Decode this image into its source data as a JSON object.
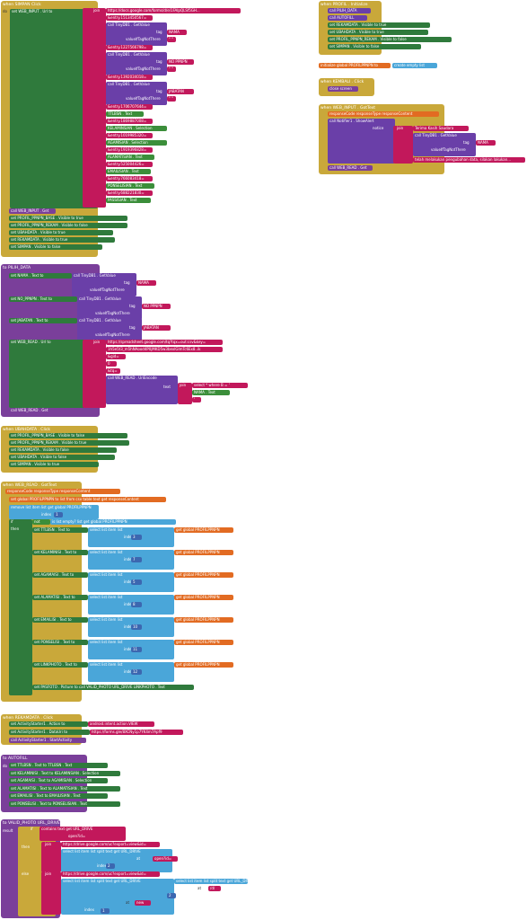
{
  "simpan": {
    "header": "when SIMPAN Click",
    "do": "do",
    "set_web_input": "set WEB_INPUT . Url to",
    "join": "join",
    "url1": "https://docs.google.com/forms/d/e/1FAIpQLSf5GH...",
    "entry1": "&entry.1513450567=",
    "call_tinydb": "call TinyDB1 . GetValue",
    "tag": "tag",
    "nama": "NAMA",
    "value_if": "valueIfTagNotThere",
    "empty": "\" \"",
    "entry2": "&entry.1227566798=",
    "no_ppnpn": "NO PPNPN",
    "entry3": "&entry.1392034018=",
    "jabatan": "JABATAN",
    "entry4": "&entry.1706707644=",
    "ttlbsn": "TTLBSN . Text",
    "entry5": "&entry.1869887008=",
    "kelaminsian": "KELAMINSIAN . Selection",
    "entry6": "&entry.1019985320=",
    "agamisian": "AGAMISIAN . Selection",
    "entry7": "&entry.1919396828=",
    "alamatisian": "ALAMATISIAN . Text",
    "entry8": "&entry.525004426=",
    "emailisian": "EMAILISIAN . Text",
    "entry9": "&entry.766083418=",
    "ponselisian": "PONSELISIAN . Text",
    "entry10": "&entry.688221830=",
    "passisian": "PASSISIAN . Text",
    "call_web_input": "call WEB_INPUT . Get",
    "set_profil_base": "set PROFIL_PPNPN_BASE . Visible to true",
    "set_profil_rekam": "set PROFIL_PPNPN_REKAM . Visible to false",
    "set_ubahdata": "set UBAHDATA . Visible to true",
    "set_rekamdata": "set REKAMDATA . Visible to true",
    "set_simpan": "set SIMPAN . Visible to false"
  },
  "profil": {
    "header": "when PROFIL . Initialize",
    "call_pilih": "call PILIH_DATA",
    "call_autofill": "call AUTOFILL",
    "set_rekamdata": "set REKAMDATA . Visible to true",
    "set_ubahdata": "set UBAHDATA . Visible to true",
    "set_profil_rekam": "set PROFIL_PPNPN_REKAM . Visible to false",
    "set_simpan": "set SIMPAN . Visible to false"
  },
  "init_global": "initialize global PROFILPPNPN to",
  "create_list": "create empty list",
  "kembali": {
    "header": "when KEMBALI . Click",
    "close": "close screen"
  },
  "web_input_got": {
    "header": "when WEB_INPUT . GotText",
    "params": "responseCode responseType responseContent",
    "call_notifier": "call Notifier1 . ShowAlert",
    "notice": "notice",
    "join": "join",
    "thanks": "Terima Kasih Saudara",
    "call_tinydb": "call TinyDB1 . GetValue",
    "tag": "tag",
    "nama": "NAMA",
    "value_if": "valueIfTagNotThere",
    "done": "telah melakukan pengubahan data, silakan lakukan...",
    "call_web_read": "call WEB_READ . Get"
  },
  "pilih_data": {
    "header": "to PILIH_DATA",
    "set_nama": "set NAMA . Text to",
    "set_no": "set NO_PPNPN . Text to",
    "set_jabatan": "set JABATAN . Text to",
    "set_web_read": "set WEB_READ . Url to",
    "url": "https://spreadsheet.google.com/tq?tqx=out:csv&key=",
    "key": "1h5e5t3_m5hNAood4P0jMKD5w3bexIGlmTc6Ex8..ik",
    "gid": "&gid=",
    "zero": "0",
    "tq": "&tq=",
    "call_uri": "call WEB_READ . UriEncode",
    "text_lbl": "text",
    "select": "select * where B = '",
    "nama_text": "NAMA . Text",
    "quote": "'",
    "call_get": "call WEB_READ . Get"
  },
  "ubahdata": {
    "header": "when UBAHDATA . Click",
    "l1": "set PROFIL_PPNPN_BASE . Visible to false",
    "l2": "set PROFIL_PPNPN_REKAM . Visible to true",
    "l3": "set REKAMDATA . Visible to false",
    "l4": "set UBAHDATA . Visible to false",
    "l5": "set SIMPAN . Visible to true"
  },
  "web_read_got": {
    "header": "when WEB_READ . GotText",
    "params": "responseCode responseType responseContent",
    "set_global": "set global PROFILPPNPN to list from csv table text get responseContent",
    "remove": "remove list item list get global PROFILPPNPN",
    "index": "index",
    "one": "1",
    "if": "if",
    "not": "not",
    "is_empty": "is list empty? list get global PROFILPPNPN",
    "then": "then",
    "sel": "select list item list",
    "get_global": "get global PROFILPPNPN",
    "rows": [
      {
        "label": "set TTLBSN . Text to",
        "idx": "3"
      },
      {
        "label": "set KELAMINISI . Text to",
        "idx": "7"
      },
      {
        "label": "set AGAMAISI . Text to",
        "idx": "5"
      },
      {
        "label": "set ALAMATISI . Text to",
        "idx": "8"
      },
      {
        "label": "set EMAILISI . Text to",
        "idx": "10"
      },
      {
        "label": "set PONSELISI . Text to",
        "idx": "11"
      },
      {
        "label": "set LINKPHOTO . Text to",
        "idx": "12"
      }
    ],
    "pasfoto": "set PASFOTO . Picture to call VALID_PHOTO URL_DRIVE LINKPHOTO . Text"
  },
  "rekamdata": {
    "header": "when REKAMDATA . Click",
    "l1": "set ActivityStarter1 . Action to",
    "action": "android.intent.action.VIEW",
    "l2": "set ActivityStarter1 . DataUri to",
    "uri": "https://forms.gle/8XCNy1p7YK4m7Apf9",
    "l3": "call ActivityStarter1 . StartActivity"
  },
  "autofill": {
    "header": "to AUTOFILL",
    "do": "do",
    "rows": [
      "set TTLBSN . Text to TTLBSN . Text",
      "set KELAMINISI . Text to KELAMINSIAN . Selection",
      "set AGAMAISI . Text to AGAMISIAN . Selection",
      "set ALAMATISI . Text to ALAMATISIAN . Text",
      "set EMAILISI . Text to EMAILISIAN . Text",
      "set PONSELISI . Text to PONSELISIAN . Text"
    ]
  },
  "valid_photo": {
    "header": "to VALID_PHOTO URL_DRIVE",
    "result": "result",
    "if": "if",
    "contains": "contains text get URL_DRIVE",
    "piece": "piece",
    "open_id": "open?id=",
    "then": "then",
    "else": "else",
    "join": "join",
    "drive_url": "https://drive.google.com/uc?export=view&id=",
    "sel": "select list item list split text get URL_DRIVE",
    "at": "at",
    "index": "index",
    "two": "2",
    "new": "new",
    "d": "/d/",
    "one": "1"
  }
}
